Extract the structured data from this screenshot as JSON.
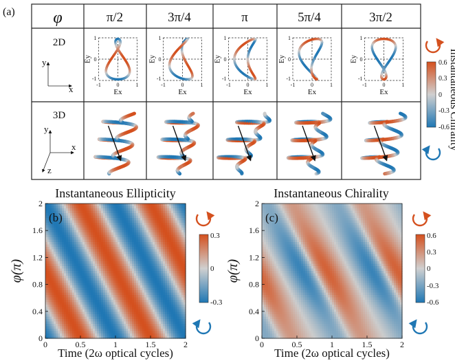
{
  "panel_labels": {
    "a": "(a)",
    "b": "(b)",
    "c": "(c)"
  },
  "table": {
    "header_symbol": "φ",
    "phase_columns": [
      "π/2",
      "3π/4",
      "π",
      "5π/4",
      "3π/2"
    ],
    "row_labels": [
      "2D",
      "3D"
    ],
    "axes_2d": {
      "x": "x",
      "y": "y",
      "ex": "Ex",
      "ey": "Ey",
      "ticks": [
        "-1",
        "0",
        "1"
      ]
    },
    "axes_3d": {
      "x": "x",
      "y": "y",
      "z": "z"
    }
  },
  "chirality_colorbar": {
    "label": "Instantaneous Chirality",
    "ticks": [
      "0.6",
      "0.3",
      "0",
      "-0.3",
      "-0.6"
    ]
  },
  "colors": {
    "positive": "#d4501e",
    "zero": "#cccccc",
    "negative": "#1f77b4"
  },
  "icons": {
    "top": "counterclockwise-arrow-icon",
    "bottom": "clockwise-arrow-icon"
  },
  "chart_data": [
    {
      "type": "heatmap",
      "title": "Instantaneous Ellipticity",
      "xlabel": "Time (2ω optical cycles)",
      "ylabel": "φ(π)",
      "xlim": [
        0,
        2
      ],
      "ylim": [
        0,
        2
      ],
      "xticks": [
        "0",
        "0.5",
        "1",
        "1.5",
        "2"
      ],
      "yticks": [
        "0",
        "0.4",
        "0.8",
        "1.2",
        "1.6",
        "2"
      ],
      "colorbar": {
        "min": -0.3,
        "max": 0.3,
        "ticks": [
          "0.3",
          "0",
          "-0.3"
        ]
      },
      "pattern": "diagonal stripes; value ~ 0.3*sin(2π(t + 0.5φ) - π/2)"
    },
    {
      "type": "heatmap",
      "title": "Instantaneous Chirality",
      "xlabel": "Time (2ω optical cycles)",
      "ylabel": "φ(π)",
      "xlim": [
        0,
        2
      ],
      "ylim": [
        0,
        2
      ],
      "xticks": [
        "0",
        "0.5",
        "1",
        "1.5",
        "2"
      ],
      "yticks": [
        "0",
        "0.4",
        "0.8",
        "1.2",
        "1.6",
        "2"
      ],
      "colorbar": {
        "min": -0.6,
        "max": 0.6,
        "ticks": [
          "0.6",
          "0.3",
          "0",
          "-0.3",
          "-0.6"
        ]
      },
      "pattern": "staircase diagonal stripes with weaker amplitude near φ=0 and φ=2"
    }
  ]
}
